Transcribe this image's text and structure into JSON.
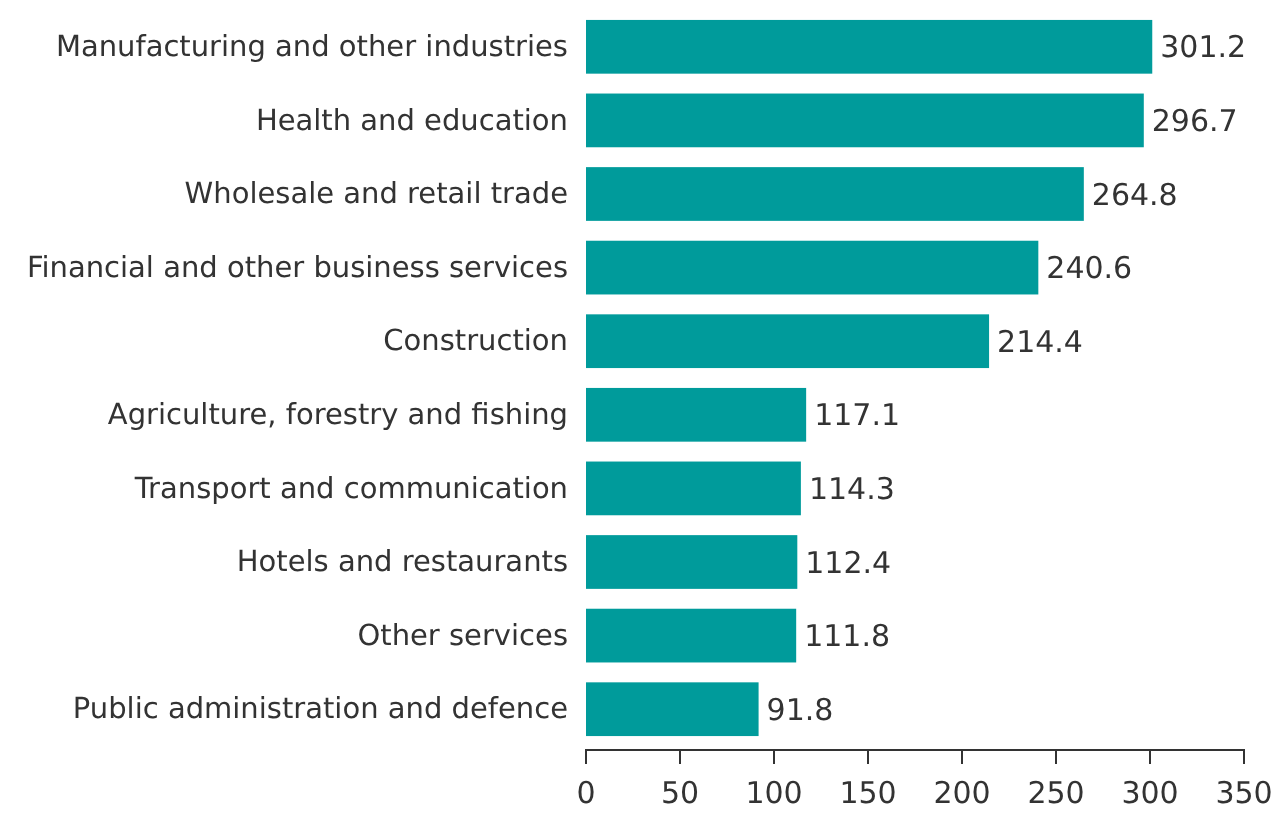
{
  "chart_data": {
    "type": "bar",
    "orientation": "horizontal",
    "categories": [
      "Manufacturing and other industries",
      "Health and education",
      "Wholesale and retail trade",
      "Financial and other business services",
      "Construction",
      "Agriculture, forestry and fishing",
      "Transport and communication",
      "Hotels and restaurants",
      "Other services",
      "Public administration and defence"
    ],
    "values": [
      301.2,
      296.7,
      264.8,
      240.6,
      214.4,
      117.1,
      114.3,
      112.4,
      111.8,
      91.8
    ],
    "color": "#009b9b",
    "xlim": [
      0,
      350
    ],
    "xticks": [
      0,
      50,
      100,
      150,
      200,
      250,
      300,
      350
    ],
    "data_labels": true
  }
}
